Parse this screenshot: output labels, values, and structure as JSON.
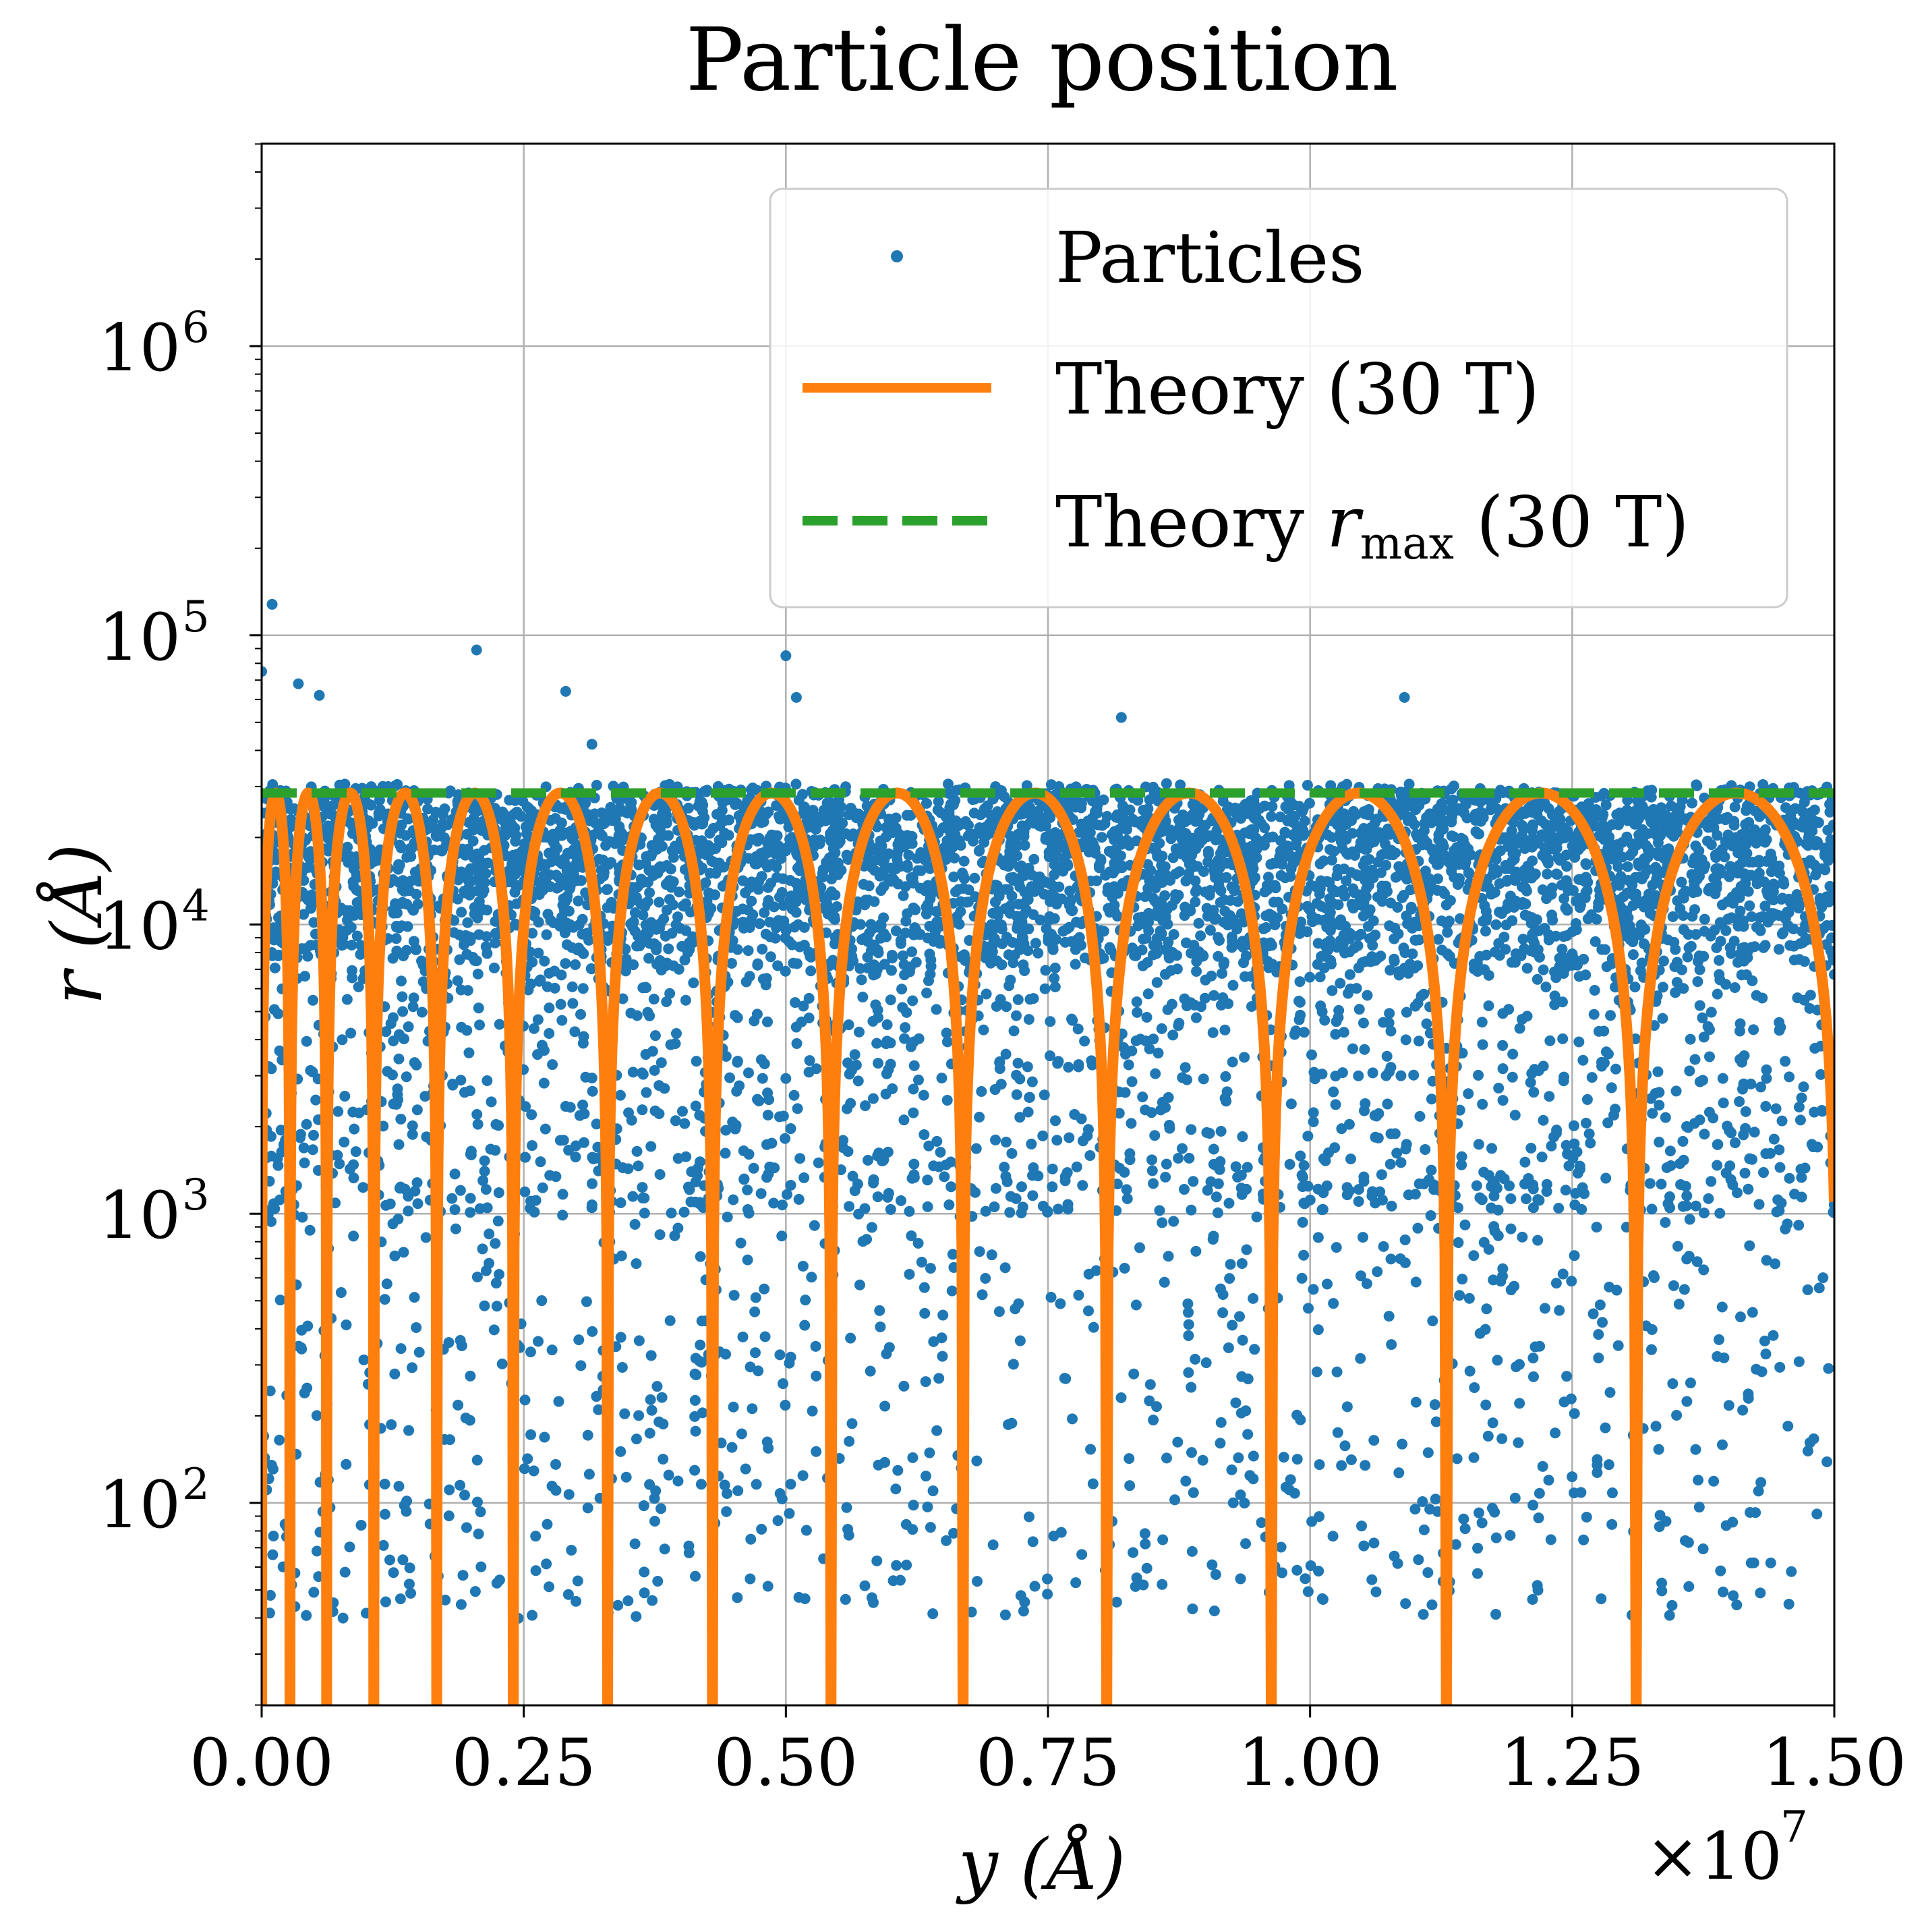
{
  "chart_data": {
    "type": "scatter",
    "title": "Particle position",
    "xlabel": "y (Å)",
    "ylabel": "r (Å)",
    "x_scale_label": "×10",
    "x_scale_exponent": "7",
    "xlim": [
      0.0,
      1.5
    ],
    "ylim_log10": [
      1.3,
      6.7
    ],
    "y_scale": "log",
    "grid": true,
    "legend_position": "top-right",
    "x_ticks": [
      "0.00",
      "0.25",
      "0.50",
      "0.75",
      "1.00",
      "1.25",
      "1.50"
    ],
    "y_ticks": [
      {
        "base": "10",
        "exp": "2",
        "log10": 2
      },
      {
        "base": "10",
        "exp": "3",
        "log10": 3
      },
      {
        "base": "10",
        "exp": "4",
        "log10": 4
      },
      {
        "base": "10",
        "exp": "5",
        "log10": 5
      },
      {
        "base": "10",
        "exp": "6",
        "log10": 6
      }
    ],
    "series": [
      {
        "name": "Particles",
        "kind": "scatter",
        "color": "#1f77b4",
        "particle_count_approx": 9000,
        "r_upper_band": 28000,
        "outliers": [
          {
            "x": 0.0,
            "y": 75000
          },
          {
            "x": 0.01,
            "y": 128000
          },
          {
            "x": 0.035,
            "y": 68000
          },
          {
            "x": 0.055,
            "y": 62000
          },
          {
            "x": 0.205,
            "y": 89000
          },
          {
            "x": 0.29,
            "y": 64000
          },
          {
            "x": 0.315,
            "y": 42000
          },
          {
            "x": 0.5,
            "y": 85000
          },
          {
            "x": 0.51,
            "y": 61000
          },
          {
            "x": 0.82,
            "y": 52000
          },
          {
            "x": 1.09,
            "y": 61000
          }
        ]
      },
      {
        "name": "Theory (30 T)",
        "kind": "line",
        "color": "#ff7f0e",
        "r_max": 28500,
        "zeros_x": [
          0.0,
          0.027,
          0.062,
          0.107,
          0.167,
          0.24,
          0.33,
          0.43,
          0.543,
          0.669,
          0.806,
          0.963,
          1.13,
          1.311,
          1.5
        ],
        "r_end": 1100
      },
      {
        "name": "Theory r_max (30 T)",
        "legend_label_prefix": "Theory ",
        "legend_label_symbol": "r",
        "legend_label_subscript": "max",
        "legend_label_suffix": " (30 T)",
        "kind": "hline",
        "color": "#2ca02c",
        "value": 28500
      }
    ]
  }
}
